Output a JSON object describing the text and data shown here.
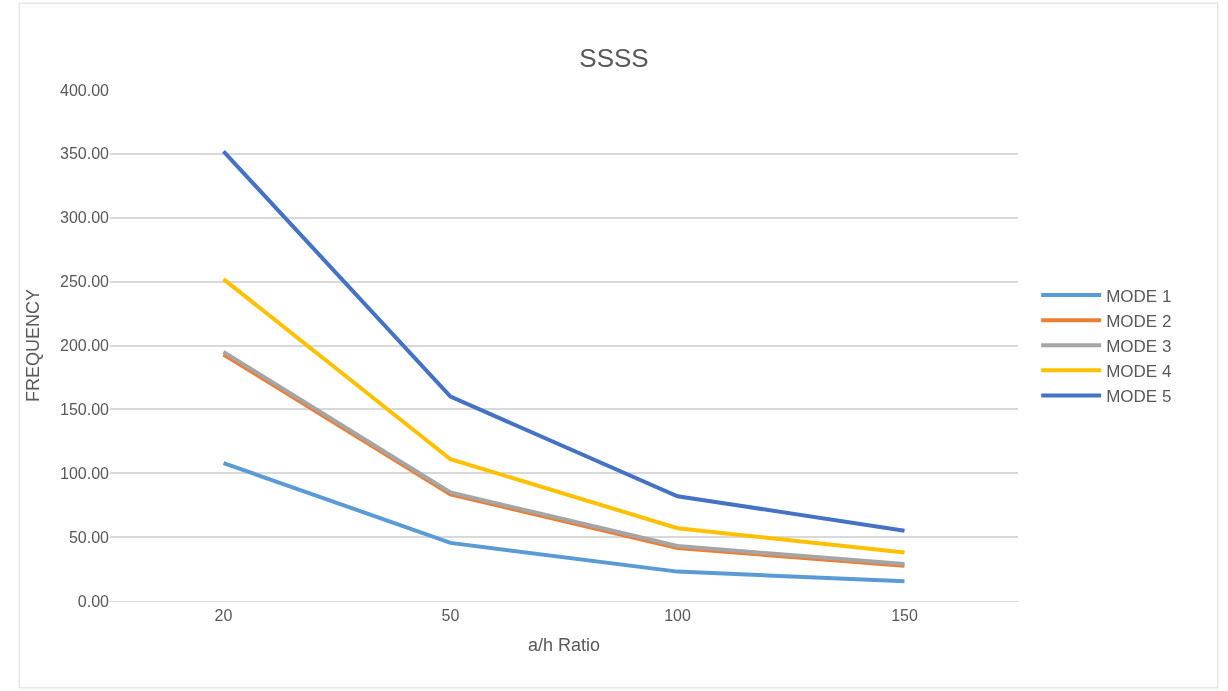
{
  "chart_data": {
    "type": "line",
    "title": "SSSS",
    "xlabel": "a/h Ratio",
    "ylabel": "FREQUENCY",
    "categories": [
      "20",
      "50",
      "100",
      "150"
    ],
    "series": [
      {
        "name": "MODE 1",
        "color": "#5b9bd5",
        "values": [
          108,
          45.5,
          23,
          15.5
        ]
      },
      {
        "name": "MODE 2",
        "color": "#ed7d31",
        "values": [
          193,
          83.5,
          41.5,
          27.5
        ]
      },
      {
        "name": "MODE 3",
        "color": "#a5a5a5",
        "values": [
          195,
          85,
          43,
          29
        ]
      },
      {
        "name": "MODE 4",
        "color": "#ffc000",
        "values": [
          252,
          111,
          57,
          38
        ]
      },
      {
        "name": "MODE 5",
        "color": "#4472c4",
        "values": [
          352,
          160,
          82,
          55
        ]
      }
    ],
    "ylim": [
      0,
      400
    ],
    "yticks": [
      {
        "value": 0,
        "label": "0.00"
      },
      {
        "value": 50,
        "label": "50.00"
      },
      {
        "value": 100,
        "label": "100.00"
      },
      {
        "value": 150,
        "label": "150.00"
      },
      {
        "value": 200,
        "label": "200.00"
      },
      {
        "value": 250,
        "label": "250.00"
      },
      {
        "value": 300,
        "label": "300.00"
      },
      {
        "value": 350,
        "label": "350.00"
      },
      {
        "value": 400,
        "label": "400.00"
      }
    ],
    "grid": "y",
    "legend": "right",
    "marker": "none",
    "line_style": "solid"
  }
}
